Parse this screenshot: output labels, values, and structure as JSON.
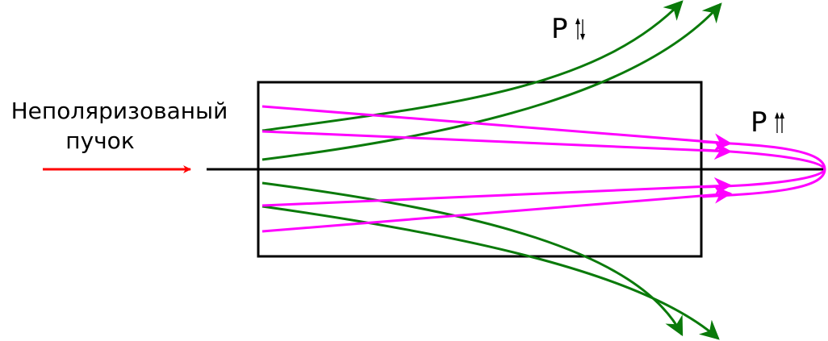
{
  "labels": {
    "beam_line1": "Неполяризованый",
    "beam_line2": "пучок",
    "p_antiparallel_letter": "P",
    "p_parallel_letter": "P"
  },
  "colors": {
    "incoming": "#ff0000",
    "antiparallel": "#0a7a0a",
    "parallel": "#ff00ff",
    "frame": "#000000"
  }
}
